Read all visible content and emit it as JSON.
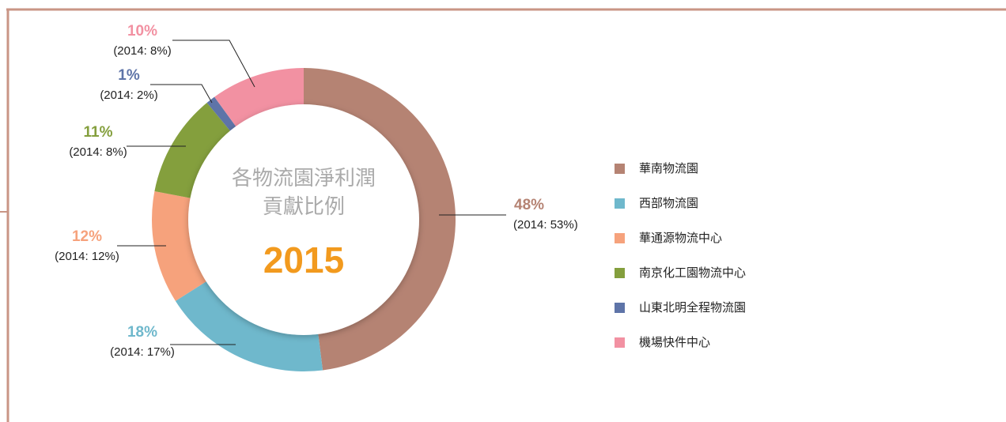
{
  "chart_data": {
    "type": "donut",
    "title": [
      "各物流園淨利潤",
      "貢獻比例"
    ],
    "subtitle": "2015",
    "categories": [
      "華南物流園",
      "西部物流園",
      "華通源物流中心",
      "南京化工園物流中心",
      "山東北明全程物流園",
      "機場快件中心"
    ],
    "values": [
      48,
      18,
      12,
      11,
      1,
      10
    ],
    "value_labels": [
      "48%",
      "18%",
      "12%",
      "11%",
      "1%",
      "10%"
    ],
    "prior_labels": [
      "(2014: 53%)",
      "(2014: 17%)",
      "(2014: 12%)",
      "(2014: 8%)",
      "(2014: 2%)",
      "(2014: 8%)"
    ],
    "colors": [
      "#b58373",
      "#6fb8cc",
      "#f6a27c",
      "#849f3d",
      "#5e74a8",
      "#f291a2"
    ],
    "legend": "right"
  }
}
